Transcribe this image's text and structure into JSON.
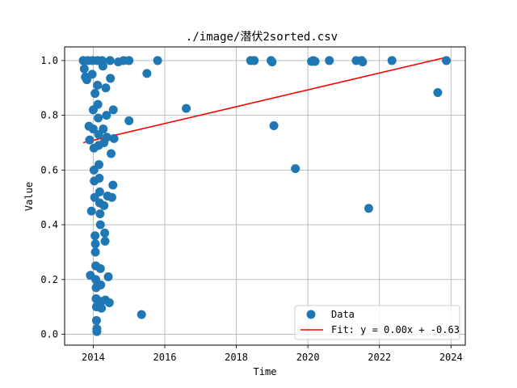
{
  "chart_data": {
    "type": "scatter",
    "title": "./image/潜伏2sorted.csv",
    "xlabel": "Time",
    "ylabel": "Value",
    "xlim": [
      2013.2,
      2024.4
    ],
    "ylim": [
      -0.04,
      1.05
    ],
    "grid": true,
    "legend_position": "bottom-right",
    "x_ticks": [
      2014,
      2016,
      2018,
      2020,
      2022,
      2024
    ],
    "x_tick_labels": [
      "2014",
      "2016",
      "2018",
      "2020",
      "2022",
      "2024"
    ],
    "y_ticks": [
      0.0,
      0.2,
      0.4,
      0.6,
      0.8,
      1.0
    ],
    "y_tick_labels": [
      "0.0",
      "0.2",
      "0.4",
      "0.6",
      "0.8",
      "1.0"
    ],
    "colors": {
      "points": "#1f77b4",
      "fit": "#ff0000",
      "grid": "#b0b0b0"
    },
    "series": [
      {
        "name": "Data",
        "kind": "scatter",
        "points": [
          [
            13.72,
            1.0
          ],
          [
            13.75,
            0.97
          ],
          [
            13.78,
            0.94
          ],
          [
            13.82,
            0.93
          ],
          [
            13.85,
            1.0
          ],
          [
            13.88,
            0.76
          ],
          [
            13.9,
            0.71
          ],
          [
            13.92,
            0.215
          ],
          [
            13.95,
            0.45
          ],
          [
            13.97,
            0.95
          ],
          [
            13.98,
            1.0
          ],
          [
            14.0,
            0.82
          ],
          [
            14.0,
            0.75
          ],
          [
            14.02,
            0.68
          ],
          [
            14.02,
            0.6
          ],
          [
            14.03,
            0.56
          ],
          [
            14.04,
            0.5
          ],
          [
            14.05,
            0.88
          ],
          [
            14.05,
            0.36
          ],
          [
            14.06,
            0.33
          ],
          [
            14.06,
            0.3
          ],
          [
            14.07,
            0.25
          ],
          [
            14.07,
            0.2
          ],
          [
            14.08,
            0.17
          ],
          [
            14.08,
            0.13
          ],
          [
            14.09,
            0.1
          ],
          [
            14.09,
            0.05
          ],
          [
            14.1,
            0.02
          ],
          [
            14.1,
            0.01
          ],
          [
            14.12,
            1.0
          ],
          [
            14.12,
            0.91
          ],
          [
            14.13,
            0.84
          ],
          [
            14.14,
            0.79
          ],
          [
            14.15,
            0.73
          ],
          [
            14.15,
            0.69
          ],
          [
            14.16,
            0.62
          ],
          [
            14.17,
            0.57
          ],
          [
            14.18,
            0.52
          ],
          [
            14.18,
            0.48
          ],
          [
            14.19,
            0.44
          ],
          [
            14.2,
            0.4
          ],
          [
            14.2,
            0.24
          ],
          [
            14.21,
            0.18
          ],
          [
            14.22,
            0.12
          ],
          [
            14.23,
            0.095
          ],
          [
            14.25,
            1.0
          ],
          [
            14.27,
            0.98
          ],
          [
            14.28,
            0.75
          ],
          [
            14.3,
            0.7
          ],
          [
            14.3,
            0.47
          ],
          [
            14.32,
            0.37
          ],
          [
            14.33,
            0.34
          ],
          [
            14.34,
            0.125
          ],
          [
            14.35,
            0.9
          ],
          [
            14.37,
            0.8
          ],
          [
            14.38,
            0.72
          ],
          [
            14.4,
            0.505
          ],
          [
            14.42,
            0.21
          ],
          [
            14.45,
            0.115
          ],
          [
            14.47,
            1.0
          ],
          [
            14.48,
            0.935
          ],
          [
            14.5,
            0.66
          ],
          [
            14.52,
            0.5
          ],
          [
            14.55,
            0.545
          ],
          [
            14.56,
            0.82
          ],
          [
            14.58,
            0.715
          ],
          [
            14.7,
            0.995
          ],
          [
            14.85,
            1.0
          ],
          [
            15.0,
            1.0
          ],
          [
            15.0,
            0.78
          ],
          [
            15.35,
            0.072
          ],
          [
            15.5,
            0.953
          ],
          [
            15.8,
            1.0
          ],
          [
            16.6,
            0.825
          ],
          [
            18.4,
            1.0
          ],
          [
            18.5,
            1.0
          ],
          [
            18.97,
            1.0
          ],
          [
            19.0,
            0.995
          ],
          [
            19.05,
            0.762
          ],
          [
            19.65,
            0.605
          ],
          [
            20.1,
            0.997
          ],
          [
            20.15,
            1.0
          ],
          [
            20.2,
            0.997
          ],
          [
            20.6,
            1.0
          ],
          [
            21.35,
            1.0
          ],
          [
            21.5,
            1.0
          ],
          [
            21.53,
            0.995
          ],
          [
            21.7,
            0.46
          ],
          [
            22.35,
            1.0
          ],
          [
            23.63,
            0.883
          ],
          [
            23.87,
            1.0
          ]
        ]
      },
      {
        "name": "Fit: y = 0.00x + -0.63",
        "kind": "line",
        "points": [
          [
            2013.72,
            0.7
          ],
          [
            2023.87,
            1.012
          ]
        ]
      }
    ]
  }
}
